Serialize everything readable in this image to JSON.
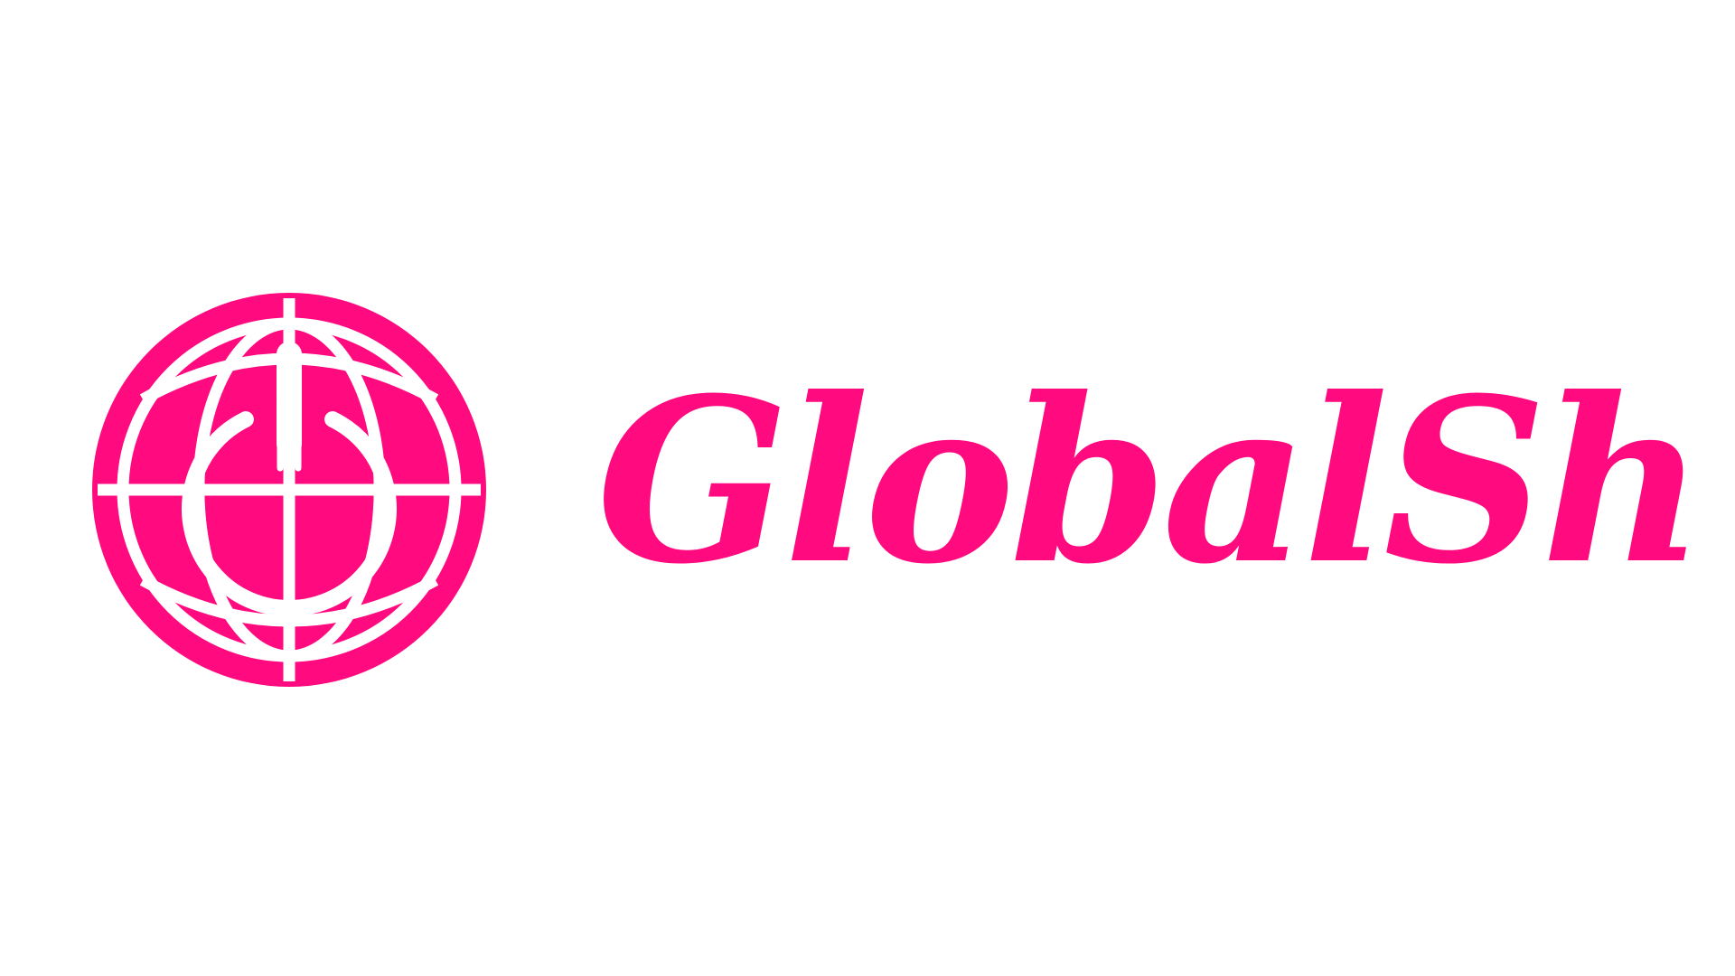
{
  "brand": {
    "name": "GlobalShut",
    "color": "#ff0a7f",
    "background": "#ffffff"
  },
  "icons": {
    "mark": "globe-power-icon"
  }
}
